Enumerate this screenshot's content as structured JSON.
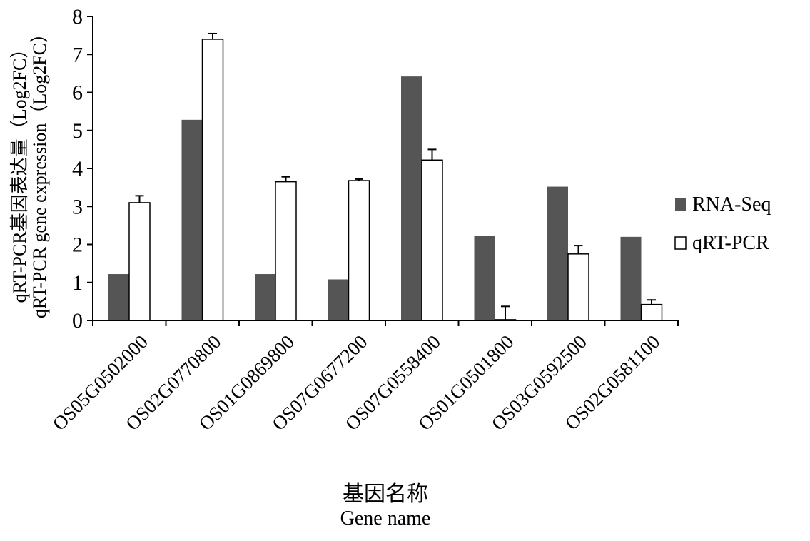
{
  "chart_data": {
    "type": "bar",
    "ylabel": [
      "qRT-PCR基因表达量（Log2FC）",
      "qRT-PCR gene expression（Log2FC）"
    ],
    "xlabel": [
      "基因名称",
      "Gene name"
    ],
    "categories": [
      "OS05G0502000",
      "OS02G0770800",
      "OS01G0869800",
      "OS07G0677200",
      "OS07G0558400",
      "OS01G0501800",
      "OS03G0592500",
      "OS02G0581100"
    ],
    "series": [
      {
        "name": "RNA-Seq",
        "color": "#555555",
        "values": [
          1.22,
          5.28,
          1.22,
          1.08,
          6.42,
          2.22,
          3.52,
          2.2
        ]
      },
      {
        "name": "qRT-PCR",
        "color": "#ffffff",
        "values": [
          3.1,
          7.4,
          3.65,
          3.68,
          4.22,
          0.02,
          1.75,
          0.42
        ],
        "errors": [
          0.18,
          0.15,
          0.13,
          0.04,
          0.28,
          0.35,
          0.22,
          0.12
        ]
      }
    ],
    "ylim": [
      0,
      8
    ],
    "yticks": [
      0,
      1,
      2,
      3,
      4,
      5,
      6,
      7,
      8
    ],
    "grid": false,
    "legend": "right"
  }
}
